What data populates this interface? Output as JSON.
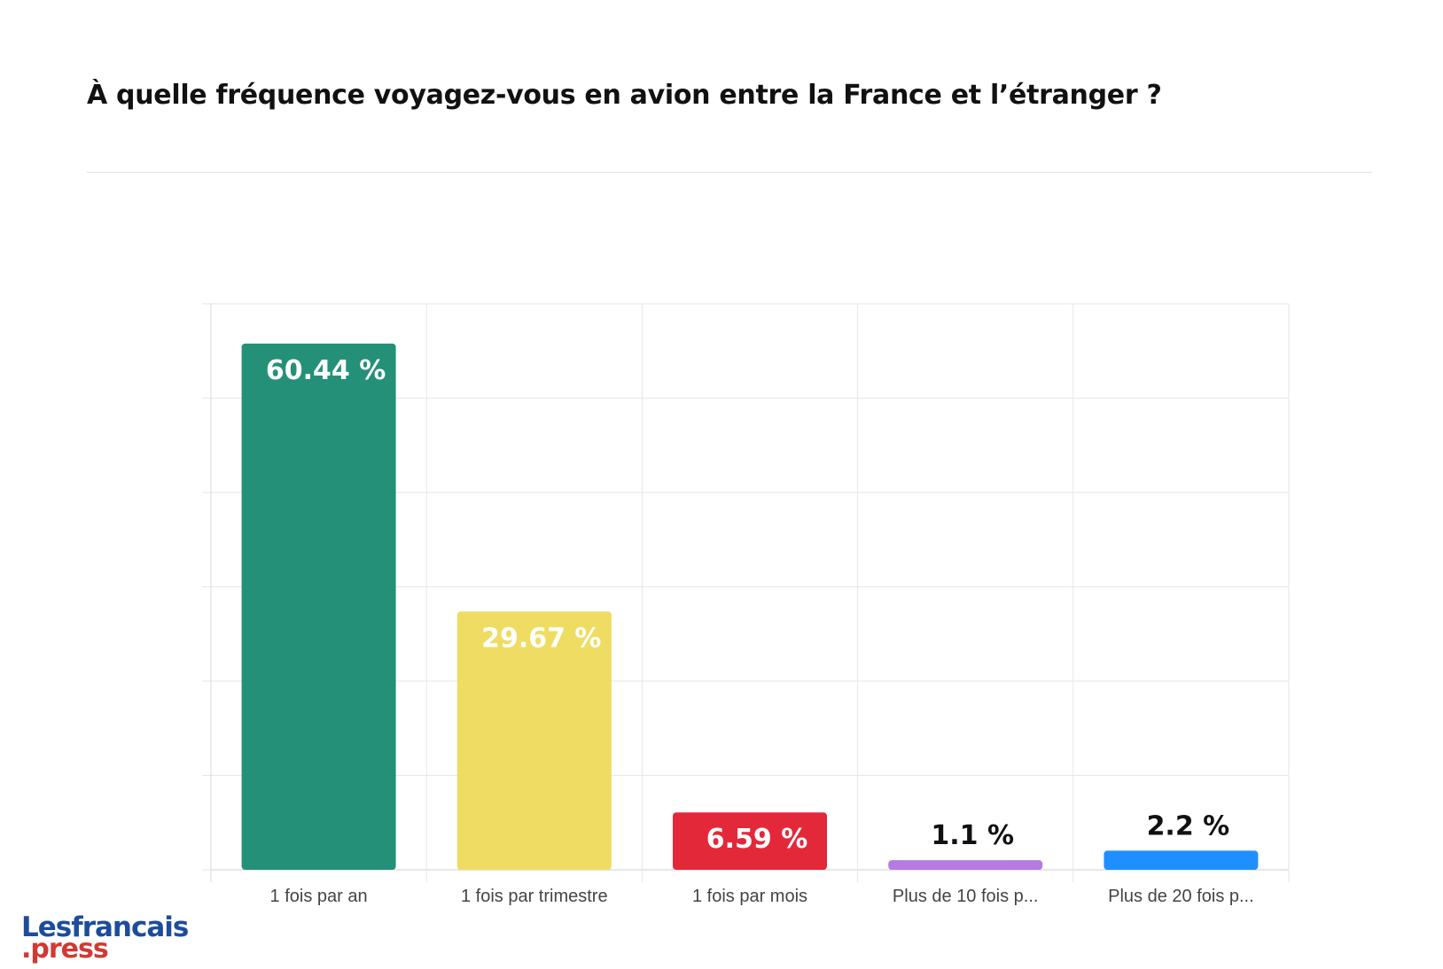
{
  "title": "À quelle fréquence voyagez-vous en avion entre la France et l’étranger ?",
  "logo": {
    "line1": "Lesfrancais",
    "line2": ".press",
    "color1": "#1d4c9c",
    "color2": "#d03a34"
  },
  "chart_data": {
    "type": "bar",
    "title": "À quelle fréquence voyagez-vous en avion entre la France et l’étranger ?",
    "xlabel": "",
    "ylabel": "",
    "ylim": [
      0,
      65
    ],
    "grid": true,
    "categories": [
      "1 fois par an",
      "1 fois par trimestre",
      "1 fois par mois",
      "Plus de 10 fois p...",
      "Plus de 20 fois p..."
    ],
    "values": [
      60.44,
      29.67,
      6.59,
      1.1,
      2.2
    ],
    "data_labels": [
      "60.44 %",
      "29.67 %",
      "6.59 %",
      "1.1 %",
      "2.2 %"
    ],
    "colors": [
      "#259078",
      "#efdc63",
      "#e3283a",
      "#b57be0",
      "#1f8fff"
    ],
    "label_colors": [
      "#ffffff",
      "#ffffff",
      "#ffffff",
      "#111111",
      "#111111"
    ]
  }
}
